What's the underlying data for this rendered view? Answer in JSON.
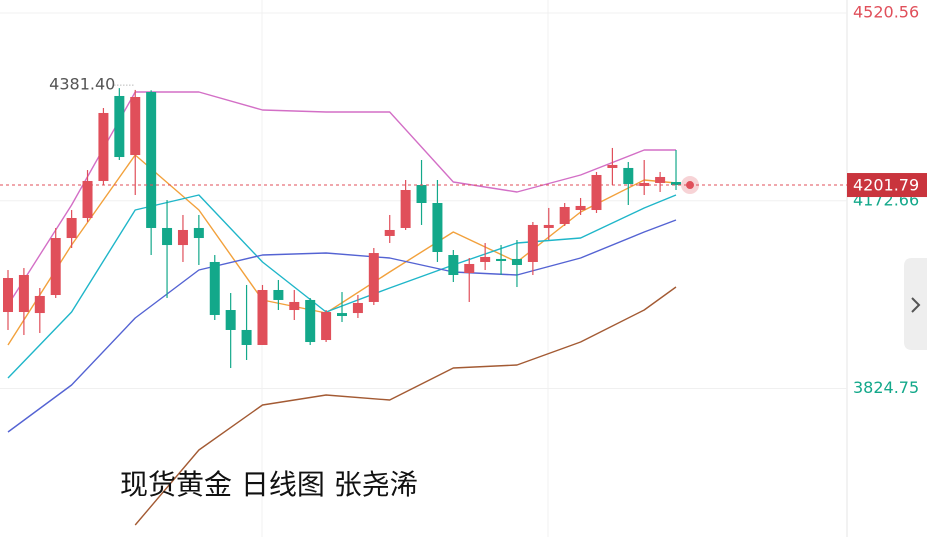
{
  "chart_data": {
    "type": "candlestick",
    "title": "现货黄金 日线图 张尧浠",
    "ylim": [
      3549.6,
      4544.65
    ],
    "yticks": [
      4520.56,
      4172.66,
      3824.75
    ],
    "last_price": 4201.79,
    "high_label": {
      "value": 4381.4,
      "label": "4381.40"
    },
    "up_color": "#e04f5a",
    "down_color": "#13a88a",
    "open": [
      3966.5,
      3966.5,
      3964.6,
      3998.0,
      4103.6,
      4140.7,
      4209.3,
      4366.8,
      4257.4,
      4374.2,
      4122.2,
      4090.6,
      4122.2,
      4059.2,
      3970.2,
      3933.2,
      3905.4,
      4007.3,
      3970.2,
      3988.8,
      3914.6,
      3964.6,
      3964.6,
      3985.1,
      4107.4,
      4122.2,
      4201.8,
      4168.5,
      4072.1,
      4038.8,
      4059.2,
      4064.8,
      4064.8,
      4059.2,
      4122.2,
      4129.6,
      4155.5,
      4155.5,
      4233.4,
      4233.4,
      4200.0,
      4205.6,
      4207.4
    ],
    "high": [
      4044.3,
      4048.0,
      4011.0,
      4122.2,
      4155.5,
      4229.6,
      4344.5,
      4381.4,
      4378.0,
      4377.5,
      4174.0,
      4146.3,
      4146.3,
      4072.1,
      4001.7,
      4016.6,
      4016.6,
      4025.8,
      4007.3,
      3992.5,
      3970.2,
      4003.5,
      3998.0,
      4085.1,
      4146.3,
      4211.1,
      4248.2,
      4211.1,
      4081.4,
      4066.6,
      4094.4,
      4090.6,
      4099.9,
      4133.3,
      4159.3,
      4168.5,
      4177.8,
      4226.0,
      4270.5,
      4244.5,
      4248.2,
      4226.0,
      4266.7
    ],
    "low": [
      3933.2,
      3923.9,
      3927.6,
      3992.5,
      4085.1,
      4133.3,
      4201.8,
      4248.2,
      4183.3,
      4072.1,
      3992.5,
      4059.2,
      4053.6,
      3951.7,
      3862.7,
      3877.6,
      3905.4,
      3970.2,
      3951.7,
      3905.4,
      3910.9,
      3948.0,
      3955.4,
      3979.5,
      4094.4,
      4118.5,
      4127.8,
      4059.2,
      4022.1,
      3985.1,
      4044.3,
      4035.1,
      4012.8,
      4035.1,
      4099.9,
      4125.9,
      4146.3,
      4150.0,
      4201.8,
      4164.8,
      4183.3,
      4188.9,
      4192.6
    ],
    "close": [
      4029.5,
      4035.1,
      3996.2,
      4103.6,
      4140.7,
      4209.3,
      4335.3,
      4253.7,
      4364.9,
      4122.2,
      4090.6,
      4118.5,
      4103.6,
      3961.0,
      3933.2,
      3905.4,
      4007.3,
      3988.8,
      3985.1,
      3910.9,
      3966.5,
      3959.1,
      3983.2,
      4075.8,
      4118.5,
      4192.6,
      4168.5,
      4077.7,
      4035.1,
      4055.5,
      4068.5,
      4061.0,
      4053.6,
      4127.8,
      4127.8,
      4161.1,
      4163.0,
      4220.4,
      4239.0,
      4203.7,
      4205.6,
      4216.7,
      4201.79
    ],
    "line_index": [
      0,
      4,
      8,
      12,
      16,
      20,
      24,
      28,
      32,
      36,
      40,
      42
    ],
    "lines": [
      {
        "color": "#d36fc6",
        "values": [
          3979.5,
          4164.8,
          4374.2,
          4374.2,
          4340.8,
          4337.1,
          4337.1,
          4207.4,
          4188.9,
          4220.4,
          4266.7,
          4266.7
        ]
      },
      {
        "color": "#f2a13c",
        "values": [
          3905.4,
          4090.6,
          4257.4,
          4155.5,
          3988.8,
          3964.6,
          4040.6,
          4114.7,
          4059.2,
          4151.8,
          4211.1,
          4205.6
        ]
      },
      {
        "color": "#1fb6c9",
        "values": [
          3844.2,
          3966.5,
          4155.5,
          4183.3,
          4059.2,
          3966.5,
          4011.0,
          4053.6,
          4094.4,
          4103.6,
          4159.3,
          4183.3
        ]
      },
      {
        "color": "#5463d3",
        "values": [
          3744.1,
          3831.2,
          3955.4,
          4044.3,
          4072.1,
          4075.8,
          4066.6,
          4040.6,
          4035.1,
          4066.6,
          4114.7,
          4137.0
        ]
      },
      {
        "color": "#a35a33",
        "values": [
          null,
          null,
          3571.8,
          3710.8,
          3794.2,
          3812.7,
          3803.5,
          3862.7,
          3868.3,
          3910.9,
          3970.2,
          4012.8
        ]
      }
    ]
  }
}
